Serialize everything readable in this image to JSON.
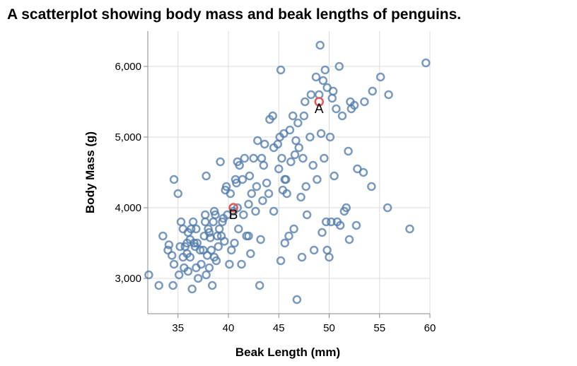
{
  "chart_data": {
    "type": "scatter",
    "title": "A scatterplot showing body mass and beak lengths of penguins.",
    "xlabel": "Beak Length (mm)",
    "ylabel": "Body Mass (g)",
    "xlim": [
      32,
      60
    ],
    "ylim": [
      2500,
      6500
    ],
    "xticks": [
      35,
      40,
      45,
      50,
      55,
      60
    ],
    "yticks": [
      3000,
      4000,
      5000,
      6000
    ],
    "xtick_labels": [
      "35",
      "40",
      "45",
      "50",
      "55",
      "60"
    ],
    "ytick_labels": [
      "3,000",
      "4,000",
      "5,000",
      "6,000"
    ],
    "grid": true,
    "colors": {
      "point": "#4c78a8",
      "highlight": "#e45756"
    },
    "points": [
      [
        32.1,
        3050
      ],
      [
        33.1,
        2900
      ],
      [
        33.5,
        3600
      ],
      [
        34.0,
        3400
      ],
      [
        34.1,
        3475
      ],
      [
        34.4,
        3325
      ],
      [
        34.5,
        2900
      ],
      [
        34.6,
        3200
      ],
      [
        34.6,
        4400
      ],
      [
        35.0,
        4200
      ],
      [
        35.1,
        3050
      ],
      [
        35.2,
        3450
      ],
      [
        35.3,
        3800
      ],
      [
        35.5,
        3300
      ],
      [
        35.5,
        3700
      ],
      [
        35.6,
        3150
      ],
      [
        35.7,
        3450
      ],
      [
        35.9,
        3350
      ],
      [
        35.9,
        3500
      ],
      [
        36.0,
        3650
      ],
      [
        36.0,
        3100
      ],
      [
        36.2,
        3300
      ],
      [
        36.2,
        3550
      ],
      [
        36.3,
        3700
      ],
      [
        36.4,
        2850
      ],
      [
        36.5,
        3800
      ],
      [
        36.6,
        3500
      ],
      [
        36.7,
        3450
      ],
      [
        36.8,
        3150
      ],
      [
        36.9,
        3500
      ],
      [
        37.0,
        3000
      ],
      [
        37.2,
        3400
      ],
      [
        37.3,
        3200
      ],
      [
        37.5,
        3400
      ],
      [
        37.6,
        3600
      ],
      [
        37.7,
        3800
      ],
      [
        37.7,
        3900
      ],
      [
        37.8,
        3050
      ],
      [
        37.8,
        4450
      ],
      [
        37.9,
        3325
      ],
      [
        38.0,
        3700
      ],
      [
        38.1,
        3650
      ],
      [
        38.1,
        3150
      ],
      [
        38.2,
        3575
      ],
      [
        38.3,
        3400
      ],
      [
        38.4,
        2900
      ],
      [
        38.5,
        3800
      ],
      [
        38.6,
        3950
      ],
      [
        38.7,
        3900
      ],
      [
        38.8,
        3250
      ],
      [
        38.9,
        3600
      ],
      [
        39.0,
        3450
      ],
      [
        39.1,
        3700
      ],
      [
        39.2,
        4650
      ],
      [
        39.3,
        3600
      ],
      [
        39.4,
        3800
      ],
      [
        39.5,
        3850
      ],
      [
        39.6,
        3525
      ],
      [
        39.7,
        4250
      ],
      [
        39.8,
        4300
      ],
      [
        39.9,
        3900
      ],
      [
        40.1,
        3200
      ],
      [
        40.2,
        4200
      ],
      [
        40.3,
        3400
      ],
      [
        40.5,
        3950
      ],
      [
        40.6,
        3500
      ],
      [
        40.7,
        4400
      ],
      [
        40.8,
        4350
      ],
      [
        40.9,
        4650
      ],
      [
        41.0,
        3700
      ],
      [
        41.1,
        4600
      ],
      [
        41.3,
        3200
      ],
      [
        41.4,
        4400
      ],
      [
        41.5,
        3900
      ],
      [
        41.6,
        4700
      ],
      [
        41.8,
        3600
      ],
      [
        42.0,
        4050
      ],
      [
        42.1,
        4450
      ],
      [
        42.2,
        3350
      ],
      [
        42.3,
        4200
      ],
      [
        42.5,
        4700
      ],
      [
        42.7,
        3950
      ],
      [
        42.8,
        4300
      ],
      [
        42.9,
        4950
      ],
      [
        43.1,
        2900
      ],
      [
        43.2,
        3550
      ],
      [
        43.3,
        4700
      ],
      [
        43.5,
        4600
      ],
      [
        43.6,
        4900
      ],
      [
        43.8,
        4350
      ],
      [
        44.0,
        4200
      ],
      [
        44.1,
        5250
      ],
      [
        44.4,
        5300
      ],
      [
        44.5,
        4850
      ],
      [
        44.9,
        4900
      ],
      [
        45.0,
        4550
      ],
      [
        45.1,
        5000
      ],
      [
        45.2,
        3250
      ],
      [
        45.2,
        5950
      ],
      [
        45.3,
        4700
      ],
      [
        45.4,
        4250
      ],
      [
        45.5,
        5050
      ],
      [
        45.6,
        3500
      ],
      [
        45.7,
        4400
      ],
      [
        45.8,
        4200
      ],
      [
        46.0,
        3600
      ],
      [
        46.1,
        5100
      ],
      [
        46.2,
        4650
      ],
      [
        46.4,
        5300
      ],
      [
        46.5,
        3700
      ],
      [
        46.6,
        4750
      ],
      [
        46.7,
        4950
      ],
      [
        46.8,
        2700
      ],
      [
        46.9,
        5200
      ],
      [
        47.0,
        4850
      ],
      [
        47.2,
        4150
      ],
      [
        47.3,
        3300
      ],
      [
        47.5,
        5300
      ],
      [
        47.6,
        5500
      ],
      [
        47.8,
        3900
      ],
      [
        48.1,
        5000
      ],
      [
        48.2,
        5600
      ],
      [
        48.4,
        4600
      ],
      [
        48.5,
        3400
      ],
      [
        48.7,
        5850
      ],
      [
        48.8,
        4400
      ],
      [
        49.0,
        5600
      ],
      [
        49.1,
        6300
      ],
      [
        49.2,
        5050
      ],
      [
        49.3,
        3650
      ],
      [
        49.4,
        5800
      ],
      [
        49.5,
        4700
      ],
      [
        49.6,
        5950
      ],
      [
        49.7,
        3800
      ],
      [
        49.8,
        5700
      ],
      [
        50.0,
        3300
      ],
      [
        50.1,
        5000
      ],
      [
        50.2,
        3800
      ],
      [
        50.3,
        5550
      ],
      [
        50.4,
        5650
      ],
      [
        50.5,
        4450
      ],
      [
        50.7,
        5400
      ],
      [
        50.8,
        3800
      ],
      [
        51.0,
        6000
      ],
      [
        51.1,
        3750
      ],
      [
        51.3,
        5300
      ],
      [
        51.5,
        3950
      ],
      [
        51.7,
        4000
      ],
      [
        51.9,
        4800
      ],
      [
        52.0,
        3550
      ],
      [
        52.1,
        5500
      ],
      [
        52.2,
        5400
      ],
      [
        52.5,
        5450
      ],
      [
        52.7,
        3750
      ],
      [
        52.8,
        4550
      ],
      [
        53.4,
        4500
      ],
      [
        53.5,
        5500
      ],
      [
        54.2,
        4300
      ],
      [
        54.3,
        5650
      ],
      [
        55.1,
        5850
      ],
      [
        55.8,
        4000
      ],
      [
        55.9,
        5600
      ],
      [
        58.0,
        3700
      ],
      [
        59.6,
        6050
      ],
      [
        49.8,
        3400
      ],
      [
        45.6,
        4400
      ],
      [
        47.4,
        4700
      ],
      [
        43.4,
        4100
      ],
      [
        40.9,
        4000
      ],
      [
        36.8,
        3700
      ],
      [
        38.6,
        3300
      ],
      [
        42.0,
        3600
      ],
      [
        44.5,
        3950
      ],
      [
        47.7,
        4300
      ]
    ],
    "highlights": [
      {
        "label": "A",
        "x": 49.0,
        "y": 5500
      },
      {
        "label": "B",
        "x": 40.5,
        "y": 4000
      }
    ]
  }
}
